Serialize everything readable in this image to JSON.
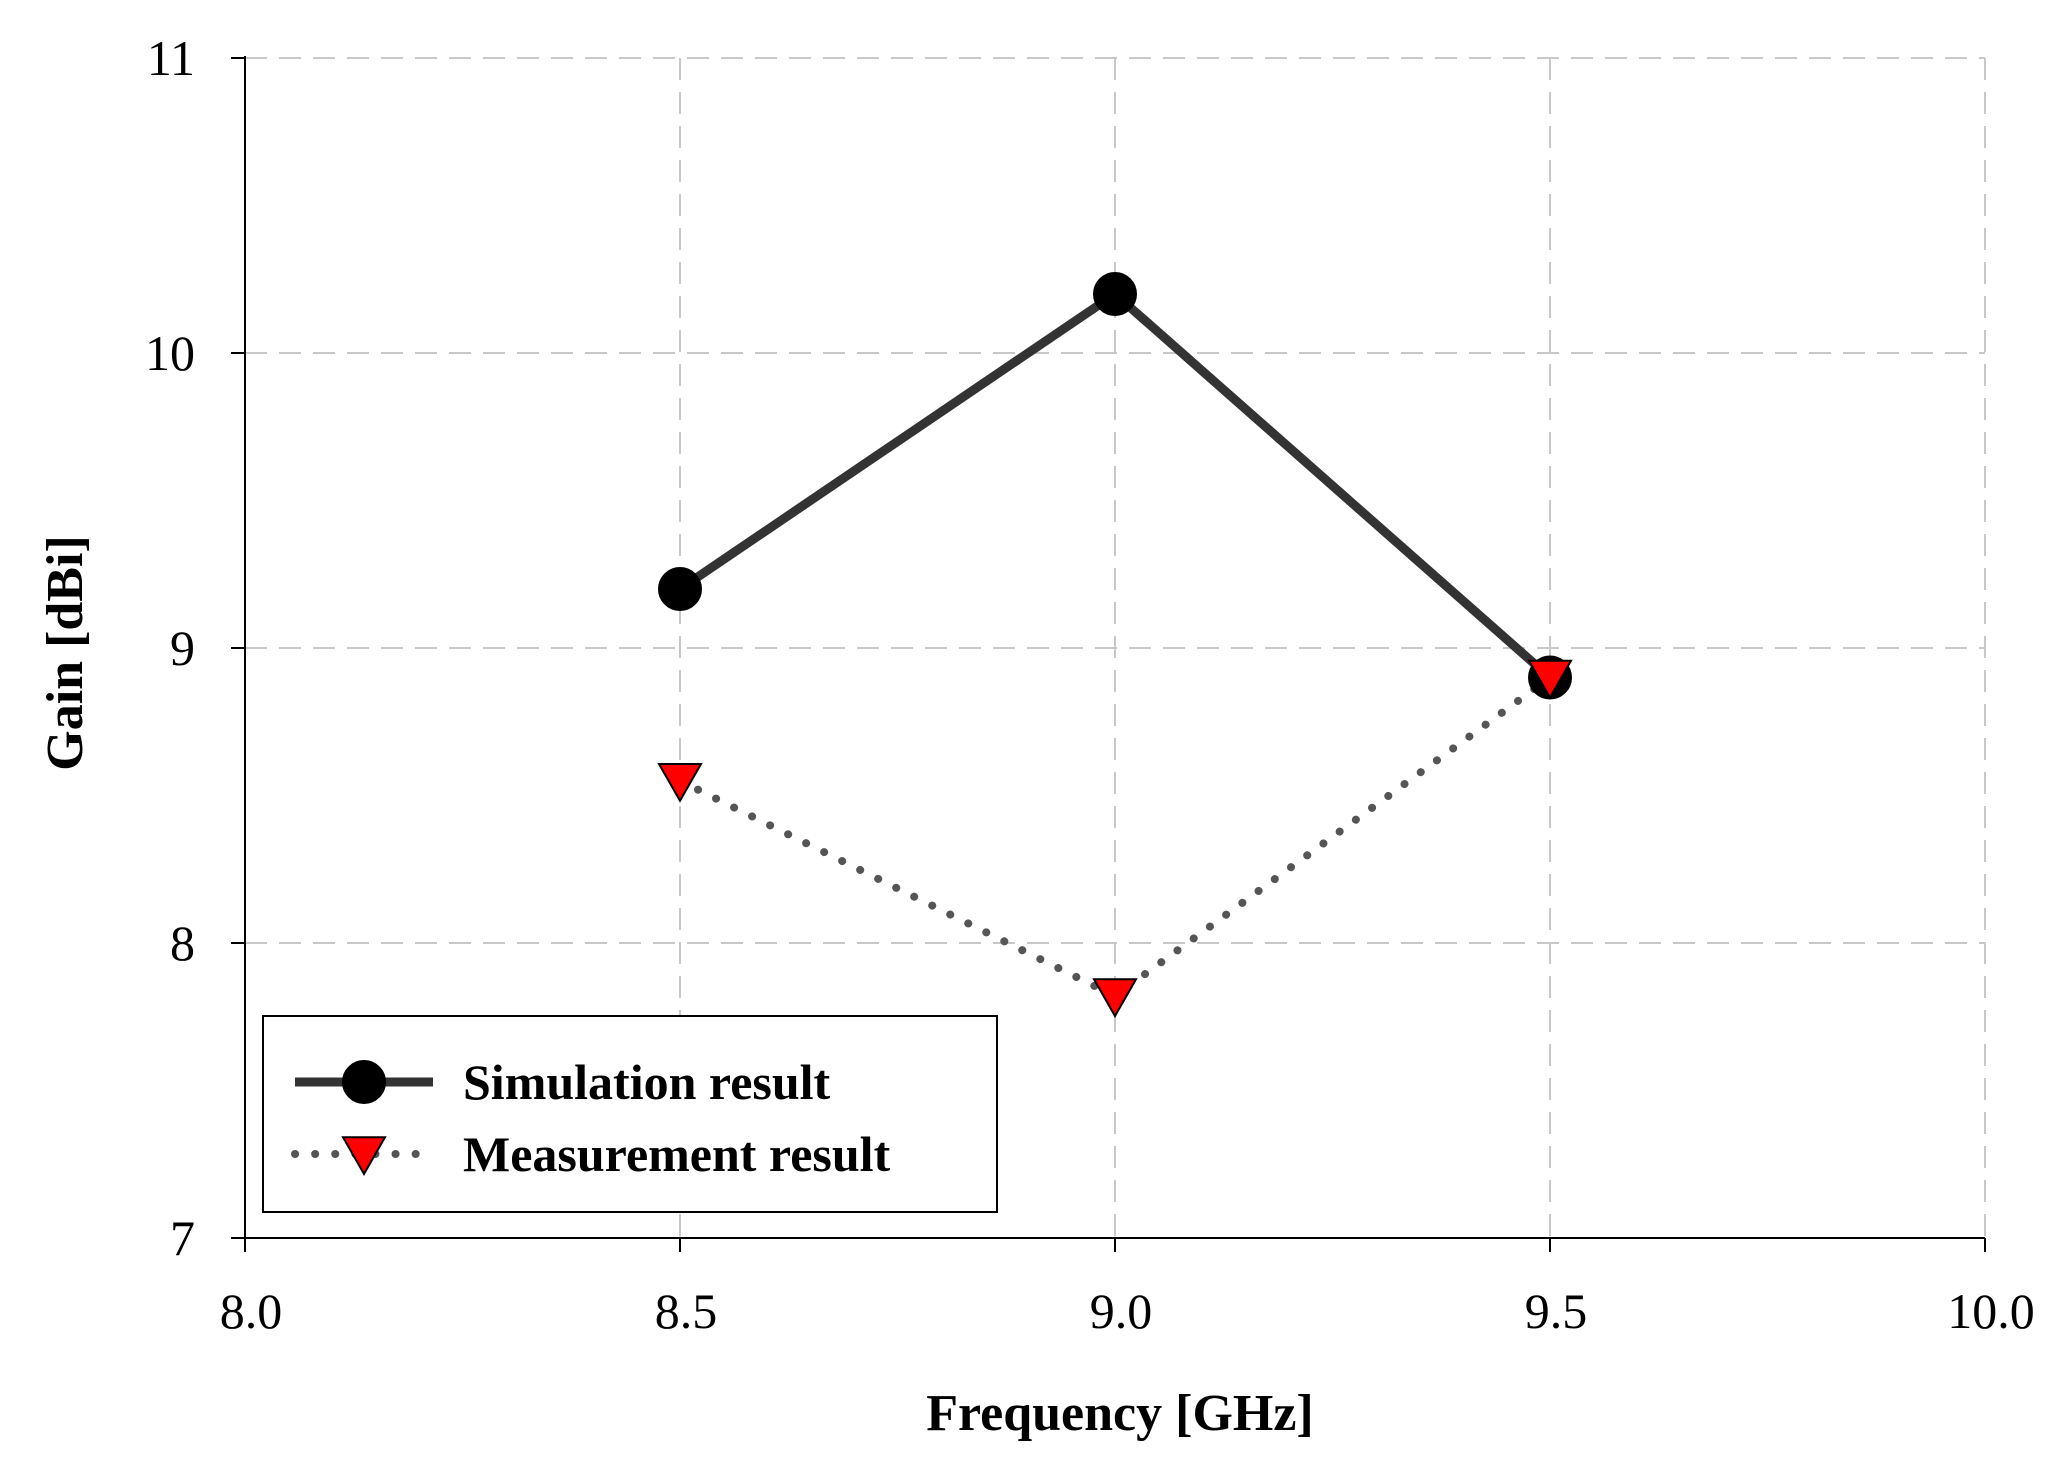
{
  "chart_data": {
    "type": "line",
    "title": "",
    "xlabel": "Frequency [GHz]",
    "ylabel": "Gain [dBi]",
    "xlim": [
      8.0,
      10.0
    ],
    "ylim": [
      7,
      11
    ],
    "xticks": [
      8.0,
      8.5,
      9.0,
      9.5,
      10.0
    ],
    "xtick_labels": [
      "8.0",
      "8.5",
      "9.0",
      "9.5",
      "10.0"
    ],
    "yticks": [
      7,
      8,
      9,
      10,
      11
    ],
    "ytick_labels": [
      "7",
      "8",
      "9",
      "10",
      "11"
    ],
    "grid": true,
    "legend_position": "bottom-left",
    "series": [
      {
        "name": "Simulation result",
        "x": [
          8.5,
          9.0,
          9.5
        ],
        "values": [
          9.2,
          10.2,
          8.9
        ],
        "line": "solid",
        "marker": "circle",
        "color": "#000000",
        "line_color": "#333333"
      },
      {
        "name": "Measurement result",
        "x": [
          8.5,
          9.0,
          9.5
        ],
        "values": [
          8.55,
          7.82,
          8.9
        ],
        "line": "dotted",
        "marker": "triangle-down",
        "color": "#ff0000",
        "line_color": "#555555"
      }
    ]
  }
}
